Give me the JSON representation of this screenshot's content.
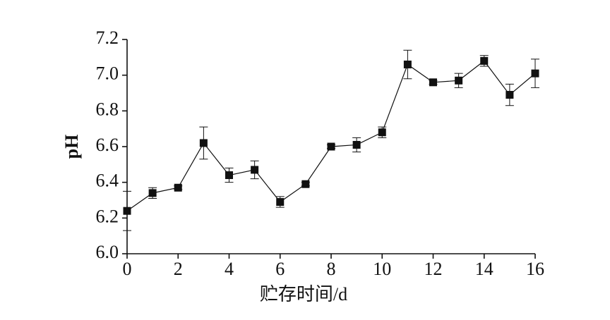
{
  "chart_data": {
    "type": "line",
    "x_label": "贮存时间/d",
    "y_label": "pH",
    "x": [
      0,
      1,
      2,
      3,
      4,
      5,
      6,
      7,
      8,
      9,
      10,
      11,
      12,
      13,
      14,
      15,
      16
    ],
    "series": [
      {
        "color": "#111111",
        "values": [
          6.24,
          6.34,
          6.37,
          6.62,
          6.44,
          6.47,
          6.29,
          6.39,
          6.6,
          6.61,
          6.68,
          7.06,
          6.96,
          6.97,
          7.08,
          6.89,
          7.01
        ],
        "errors": [
          0.11,
          0.03,
          0.01,
          0.09,
          0.04,
          0.05,
          0.03,
          0.01,
          0.01,
          0.04,
          0.03,
          0.08,
          0.01,
          0.04,
          0.03,
          0.06,
          0.08
        ]
      }
    ],
    "xlim": [
      0,
      16
    ],
    "xticks": [
      0,
      2,
      4,
      6,
      8,
      10,
      12,
      14,
      16
    ],
    "ylim": [
      6.0,
      7.2
    ],
    "yticks": [
      {
        "value": 6.0,
        "label": "6.0"
      },
      6.2,
      6.4,
      6.6,
      6.8,
      {
        "value": 7.0,
        "label": "7.0"
      },
      7.2
    ]
  }
}
